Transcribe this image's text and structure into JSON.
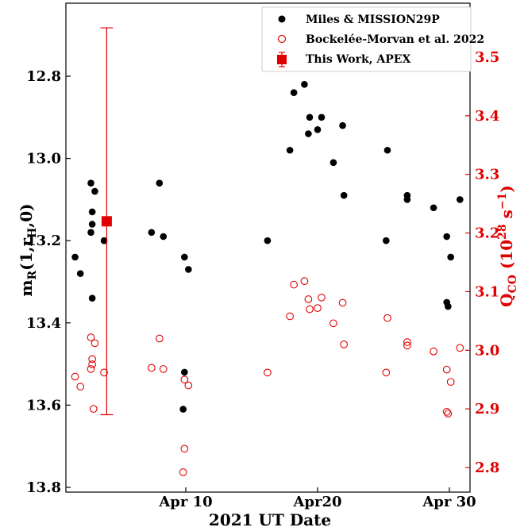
{
  "chart_data": {
    "type": "scatter",
    "xlabel": "2021 UT Date",
    "ylabel_left": {
      "main": "m",
      "sub1": "R",
      "mid": "(1,r",
      "sub2": "H",
      "end": ",0)"
    },
    "ylabel_right": {
      "main": "Q",
      "sub1": "CO",
      "mid": " (10",
      "sup": "28",
      "mid2": " s",
      "sup2": "−1",
      "end": ")"
    },
    "x_range_days": [
      1,
      32
    ],
    "x_ticks": [
      {
        "day": 10,
        "label": "Apr 10"
      },
      {
        "day": 20,
        "label": "Apr20"
      },
      {
        "day": 30,
        "label": "Apr 30"
      }
    ],
    "ylim_left": [
      12.6,
      13.82
    ],
    "yticks_left": [
      "12.8",
      "13.0",
      "13.2",
      "13.4",
      "13.6",
      "13.8"
    ],
    "left_axis_inverted": true,
    "ylim_right": [
      3.68,
      2.77
    ],
    "yticks_right": [
      "2.8",
      "2.9",
      "3.0",
      "3.1",
      "3.2",
      "3.3",
      "3.4",
      "3.5"
    ],
    "right_axis_color": "#e00000",
    "legend_position": "upper right",
    "series": [
      {
        "name": "Miles & MISSION29P",
        "marker": "filled-circle",
        "color": "#000000",
        "axis": "left",
        "points": [
          [
            1.6,
            13.24
          ],
          [
            2.0,
            13.28
          ],
          [
            2.8,
            13.06
          ],
          [
            3.1,
            13.08
          ],
          [
            2.9,
            13.13
          ],
          [
            2.9,
            13.16
          ],
          [
            2.8,
            13.18
          ],
          [
            3.8,
            13.2
          ],
          [
            2.9,
            13.34
          ],
          [
            7.4,
            13.18
          ],
          [
            8.0,
            13.06
          ],
          [
            8.3,
            13.19
          ],
          [
            9.9,
            13.24
          ],
          [
            10.2,
            13.27
          ],
          [
            9.9,
            13.52
          ],
          [
            9.8,
            13.61
          ],
          [
            16.2,
            13.2
          ],
          [
            17.9,
            12.98
          ],
          [
            18.2,
            12.84
          ],
          [
            19.0,
            12.82
          ],
          [
            19.3,
            12.94
          ],
          [
            19.4,
            12.9
          ],
          [
            20.0,
            12.93
          ],
          [
            20.3,
            12.9
          ],
          [
            21.2,
            13.01
          ],
          [
            21.9,
            12.92
          ],
          [
            22.0,
            13.09
          ],
          [
            25.2,
            13.2
          ],
          [
            25.3,
            12.98
          ],
          [
            26.8,
            13.09
          ],
          [
            26.8,
            13.1
          ],
          [
            28.8,
            13.12
          ],
          [
            29.8,
            13.19
          ],
          [
            30.1,
            13.24
          ],
          [
            29.8,
            13.35
          ],
          [
            29.9,
            13.36
          ],
          [
            30.8,
            13.1
          ]
        ]
      },
      {
        "name": "Bockelée-Morvan et al. 2022",
        "marker": "open-circle",
        "color": "#e00000",
        "axis": "right",
        "points": [
          [
            1.6,
            2.955
          ],
          [
            2.0,
            2.938
          ],
          [
            2.8,
            3.022
          ],
          [
            3.0,
            2.9
          ],
          [
            2.9,
            2.985
          ],
          [
            2.9,
            2.976
          ],
          [
            2.8,
            2.968
          ],
          [
            3.1,
            3.012
          ],
          [
            3.8,
            2.962
          ],
          [
            7.4,
            2.97
          ],
          [
            8.0,
            3.02
          ],
          [
            8.3,
            2.968
          ],
          [
            9.9,
            2.95
          ],
          [
            10.2,
            2.94
          ],
          [
            9.9,
            2.832
          ],
          [
            9.8,
            2.792
          ],
          [
            16.2,
            2.962
          ],
          [
            17.9,
            3.058
          ],
          [
            18.2,
            3.112
          ],
          [
            19.0,
            3.118
          ],
          [
            19.3,
            3.087
          ],
          [
            19.4,
            3.07
          ],
          [
            20.0,
            3.072
          ],
          [
            20.3,
            3.09
          ],
          [
            21.2,
            3.046
          ],
          [
            21.9,
            3.081
          ],
          [
            22.0,
            3.01
          ],
          [
            25.2,
            2.962
          ],
          [
            25.3,
            3.055
          ],
          [
            26.8,
            3.008
          ],
          [
            26.8,
            3.014
          ],
          [
            28.8,
            2.998
          ],
          [
            29.8,
            2.967
          ],
          [
            30.1,
            2.946
          ],
          [
            29.8,
            2.895
          ],
          [
            29.9,
            2.892
          ],
          [
            30.8,
            3.004
          ]
        ]
      },
      {
        "name": "This Work, APEX",
        "marker": "filled-square-with-errorbar",
        "color": "#e00000",
        "axis": "right",
        "points": [
          [
            4.0,
            3.22
          ]
        ],
        "error": [
          0.33
        ]
      }
    ]
  }
}
